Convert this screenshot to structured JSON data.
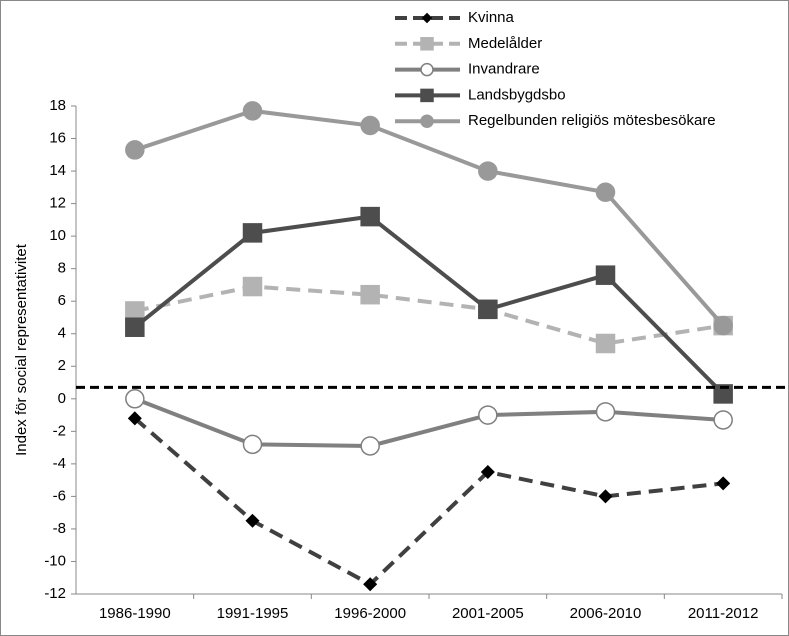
{
  "chart_data": {
    "type": "line",
    "y_label": "Index för social representativitet",
    "categories": [
      "1986-1990",
      "1991-1995",
      "1996-2000",
      "2001-2005",
      "2006-2010",
      "2011-2012"
    ],
    "series": [
      {
        "name": "Kvinna",
        "color": "#404040",
        "marker_color": "#000000",
        "marker": "diamond",
        "dashed": true,
        "values": [
          -1.2,
          -7.5,
          -11.4,
          -4.5,
          -6.0,
          -5.2
        ]
      },
      {
        "name": "Medelålder",
        "color": "#b3b3b3",
        "marker_color": "#b3b3b3",
        "marker": "square",
        "dashed": true,
        "values": [
          5.4,
          6.9,
          6.4,
          5.5,
          3.4,
          4.5
        ]
      },
      {
        "name": "Invandrare",
        "color": "#808080",
        "marker_color": "#ffffff",
        "marker": "circle",
        "dashed": false,
        "values": [
          0.0,
          -2.8,
          -2.9,
          -1.0,
          -0.8,
          -1.3
        ]
      },
      {
        "name": "Landsbygdsbo",
        "color": "#4d4d4d",
        "marker_color": "#4d4d4d",
        "marker": "square",
        "dashed": false,
        "values": [
          4.4,
          10.2,
          11.2,
          5.5,
          7.6,
          0.3
        ]
      },
      {
        "name": "Regelbunden religiös mötesbesökare",
        "color": "#999999",
        "marker_color": "#999999",
        "marker": "circle",
        "dashed": false,
        "values": [
          15.3,
          17.7,
          16.8,
          14.0,
          12.7,
          4.5
        ]
      }
    ],
    "reference_line": 0.7,
    "ylim": [
      -12,
      18
    ],
    "yticks": [
      -12,
      -10,
      -8,
      -6,
      -4,
      -2,
      0,
      2,
      4,
      6,
      8,
      10,
      12,
      14,
      16,
      18
    ],
    "grid": false
  }
}
